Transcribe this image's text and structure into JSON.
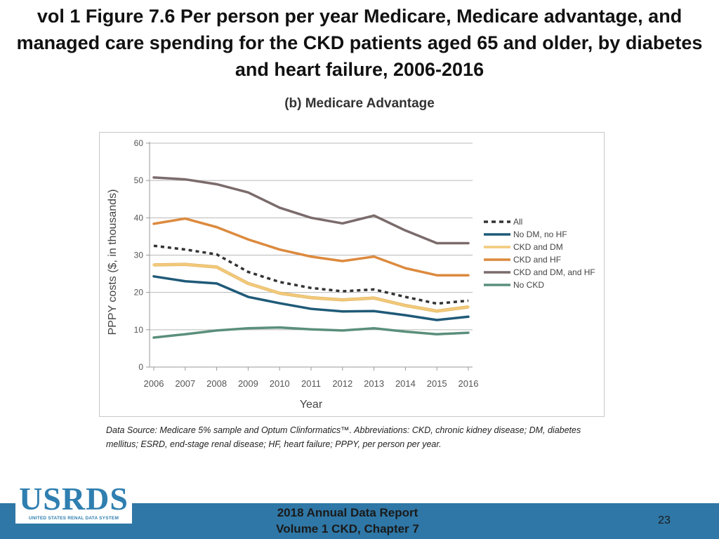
{
  "slide": {
    "title": "vol 1 Figure 7.6 Per person per year Medicare, Medicare advantage, and managed care spending for the CKD patients aged 65 and older, by diabetes and heart failure, 2006-2016",
    "subtitle": "(b) Medicare Advantage",
    "footnote": "Data Source: Medicare 5% sample and Optum Clinformatics™. Abbreviations: CKD, chronic kidney disease; DM, diabetes mellitus; ESRD, end-stage renal disease; HF, heart failure; PPPY, per person per year."
  },
  "footer": {
    "logo_text": "USRDS",
    "logo_subtext": "UNITED STATES RENAL DATA SYSTEM",
    "report_line1": "2018 Annual Data Report",
    "report_line2": "Volume 1 CKD, Chapter 7",
    "page_number": "23",
    "bar_color": "#2f77a6"
  },
  "chart_data": {
    "type": "line",
    "title": "(b) Medicare Advantage",
    "xlabel": "Year",
    "ylabel": "PPPY costs ($, in thousands)",
    "x": [
      2006,
      2007,
      2008,
      2009,
      2010,
      2011,
      2012,
      2013,
      2014,
      2015,
      2016
    ],
    "x_tick_labels": [
      "2006",
      "2007",
      "2008",
      "2009",
      "2010",
      "2011",
      "2012",
      "2013",
      "2014",
      "2015",
      "2016"
    ],
    "y_ticks": [
      0,
      10,
      20,
      30,
      40,
      50,
      60
    ],
    "y_tick_labels": [
      "0",
      "10",
      "20",
      "30",
      "40",
      "50",
      "60"
    ],
    "ylim": [
      0,
      60
    ],
    "grid": true,
    "legend_position": "right",
    "series": [
      {
        "name": "All",
        "color": "#333333",
        "dashed": true,
        "values": [
          32.5,
          31.5,
          30.2,
          25.5,
          22.8,
          21.2,
          20.3,
          20.8,
          18.8,
          17.0,
          17.8
        ]
      },
      {
        "name": "No DM, no HF",
        "color": "#1f5a78",
        "dashed": false,
        "values": [
          24.3,
          23.0,
          22.4,
          18.8,
          17.1,
          15.6,
          14.9,
          15.0,
          13.9,
          12.6,
          13.5
        ]
      },
      {
        "name": "CKD and DM",
        "color": "#f2c97a",
        "dashed": false,
        "values": [
          27.4,
          27.5,
          26.8,
          22.4,
          19.8,
          18.6,
          18.0,
          18.5,
          16.5,
          15.0,
          16.1
        ]
      },
      {
        "name": "CKD and HF",
        "color": "#dc8a3e",
        "dashed": false,
        "values": [
          38.4,
          39.8,
          37.5,
          34.2,
          31.5,
          29.6,
          28.4,
          29.6,
          26.5,
          24.6,
          24.6
        ]
      },
      {
        "name": "CKD and DM, and HF",
        "color": "#7b6b6b",
        "dashed": false,
        "values": [
          50.8,
          50.3,
          49.0,
          46.8,
          42.7,
          40.0,
          38.5,
          40.6,
          36.6,
          33.2,
          33.2
        ]
      },
      {
        "name": "No CKD",
        "color": "#5a8f7b",
        "dashed": false,
        "values": [
          7.9,
          8.8,
          9.8,
          10.4,
          10.6,
          10.1,
          9.8,
          10.4,
          9.5,
          8.8,
          9.2
        ]
      }
    ]
  }
}
